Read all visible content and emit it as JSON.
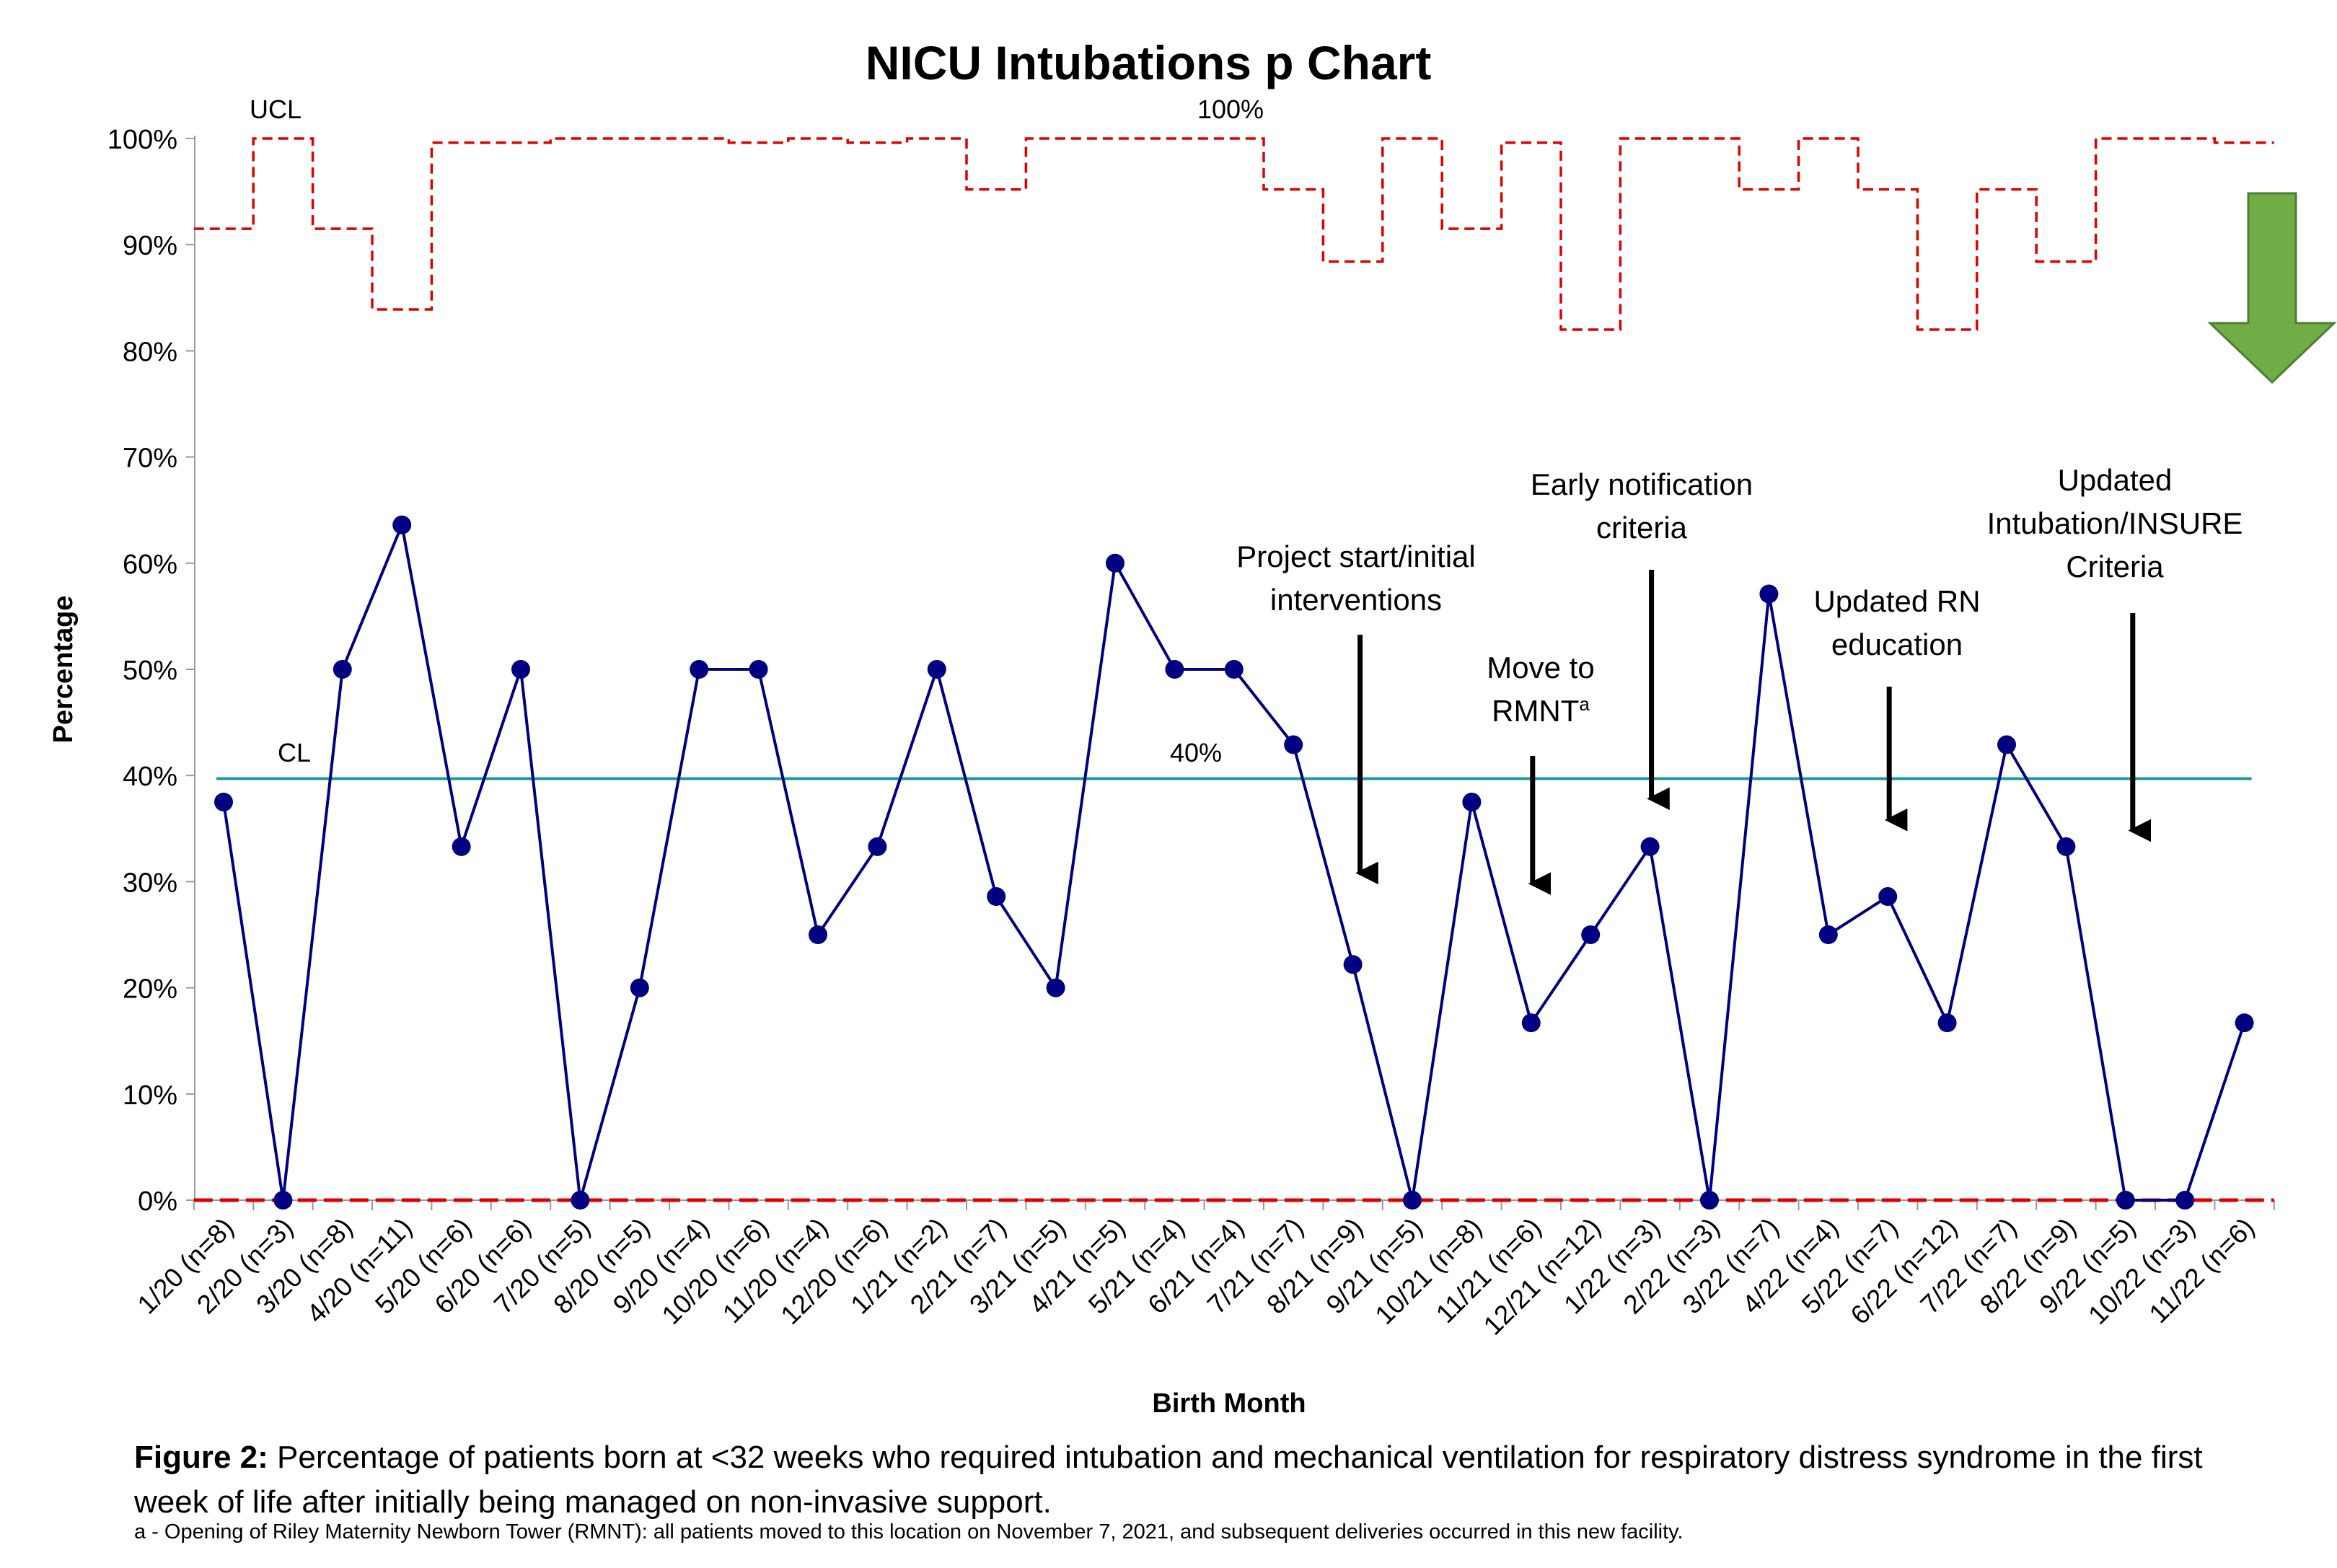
{
  "chart_data": {
    "type": "line",
    "title": "NICU Intubations p Chart",
    "xlabel": "Birth Month",
    "ylabel": "Percentage",
    "ylim": [
      0,
      100
    ],
    "yticks": [
      "0%",
      "10%",
      "20%",
      "30%",
      "40%",
      "50%",
      "60%",
      "70%",
      "80%",
      "90%",
      "100%"
    ],
    "grid": false,
    "categories": [
      "1/20 (n=8)",
      "2/20 (n=3)",
      "3/20 (n=8)",
      "4/20 (n=11)",
      "5/20 (n=6)",
      "6/20 (n=6)",
      "7/20 (n=5)",
      "8/20 (n=5)",
      "9/20 (n=4)",
      "10/20 (n=6)",
      "11/20 (n=4)",
      "12/20 (n=6)",
      "1/21 (n=2)",
      "2/21 (n=7)",
      "3/21 (n=5)",
      "4/21 (n=5)",
      "5/21 (n=4)",
      "6/21 (n=4)",
      "7/21 (n=7)",
      "8/21 (n=9)",
      "9/21 (n=5)",
      "10/21 (n=8)",
      "11/21 (n=6)",
      "12/21 (n=12)",
      "1/22 (n=3)",
      "2/22 (n=3)",
      "3/22 (n=7)",
      "4/22 (n=4)",
      "5/22 (n=7)",
      "6/22 (n=12)",
      "7/22 (n=7)",
      "8/22 (n=9)",
      "9/22 (n=5)",
      "10/22 (n=3)",
      "11/22 (n=6)"
    ],
    "series": [
      {
        "name": "",
        "values": [
          37.5,
          0,
          50,
          63.6,
          33.3,
          50,
          0,
          20,
          50,
          50,
          25,
          33.3,
          50,
          28.6,
          20,
          60,
          50,
          50,
          42.9,
          22.2,
          0,
          37.5,
          16.7,
          25,
          33.3,
          0,
          57.1,
          25,
          28.6,
          16.7,
          42.9,
          33.3,
          0,
          0,
          16.7
        ],
        "color": "#000080"
      }
    ],
    "ucl": {
      "label": "UCL",
      "value_label": "100%",
      "values": [
        91.5,
        100,
        91.5,
        83.9,
        99.6,
        99.6,
        100,
        100,
        100,
        99.6,
        100,
        99.6,
        100,
        95.2,
        100,
        100,
        100,
        100,
        95.2,
        88.4,
        100,
        91.5,
        99.6,
        82,
        100,
        100,
        95.2,
        100,
        95.2,
        82,
        95.2,
        88.4,
        100,
        100,
        99.6
      ],
      "color": "#e00000"
    },
    "lcl": {
      "values": [
        0,
        0,
        0,
        0,
        0,
        0,
        0,
        0,
        0,
        0,
        0,
        0,
        0,
        0,
        0,
        0,
        0,
        0,
        0,
        0,
        0,
        0,
        0,
        0,
        0,
        0,
        0,
        0,
        0,
        0,
        0,
        0,
        0,
        0,
        0
      ],
      "color": "#e00000"
    },
    "cl": {
      "label": "CL",
      "value": 39.7,
      "value_label": "40%",
      "color": "#1a9a9a"
    },
    "annotations": [
      {
        "lines": [
          "Project start/initial",
          "interventions"
        ],
        "at_category": "8/21 (n=9)",
        "arrow_to": 30
      },
      {
        "lines": [
          "Move to",
          "RMNT"
        ],
        "superscript": "a",
        "at_category": "11/21 (n=6)",
        "arrow_to": 29
      },
      {
        "lines": [
          "Early notification",
          "criteria"
        ],
        "at_category": "1/22 (n=3)",
        "arrow_to": 37
      },
      {
        "lines": [
          "Updated RN",
          "education"
        ],
        "at_category": "5/22 (n=7)",
        "arrow_to": 35
      },
      {
        "lines": [
          "Updated",
          "Intubation/INSURE",
          "Criteria"
        ],
        "at_category": "9/22 (n=5)",
        "arrow_to": 34
      }
    ],
    "desired_direction": "down",
    "desired_direction_color": "#70ad47"
  },
  "caption": {
    "figure_label": "Figure 2:",
    "text": "Percentage of patients born at <32 weeks who required intubation and mechanical ventilation for respiratory distress syndrome in the first week of life after initially being managed on non-invasive support."
  },
  "footnote": "a - Opening of Riley Maternity Newborn Tower (RMNT): all patients moved to this location on November 7, 2021, and subsequent deliveries occurred in this new facility."
}
